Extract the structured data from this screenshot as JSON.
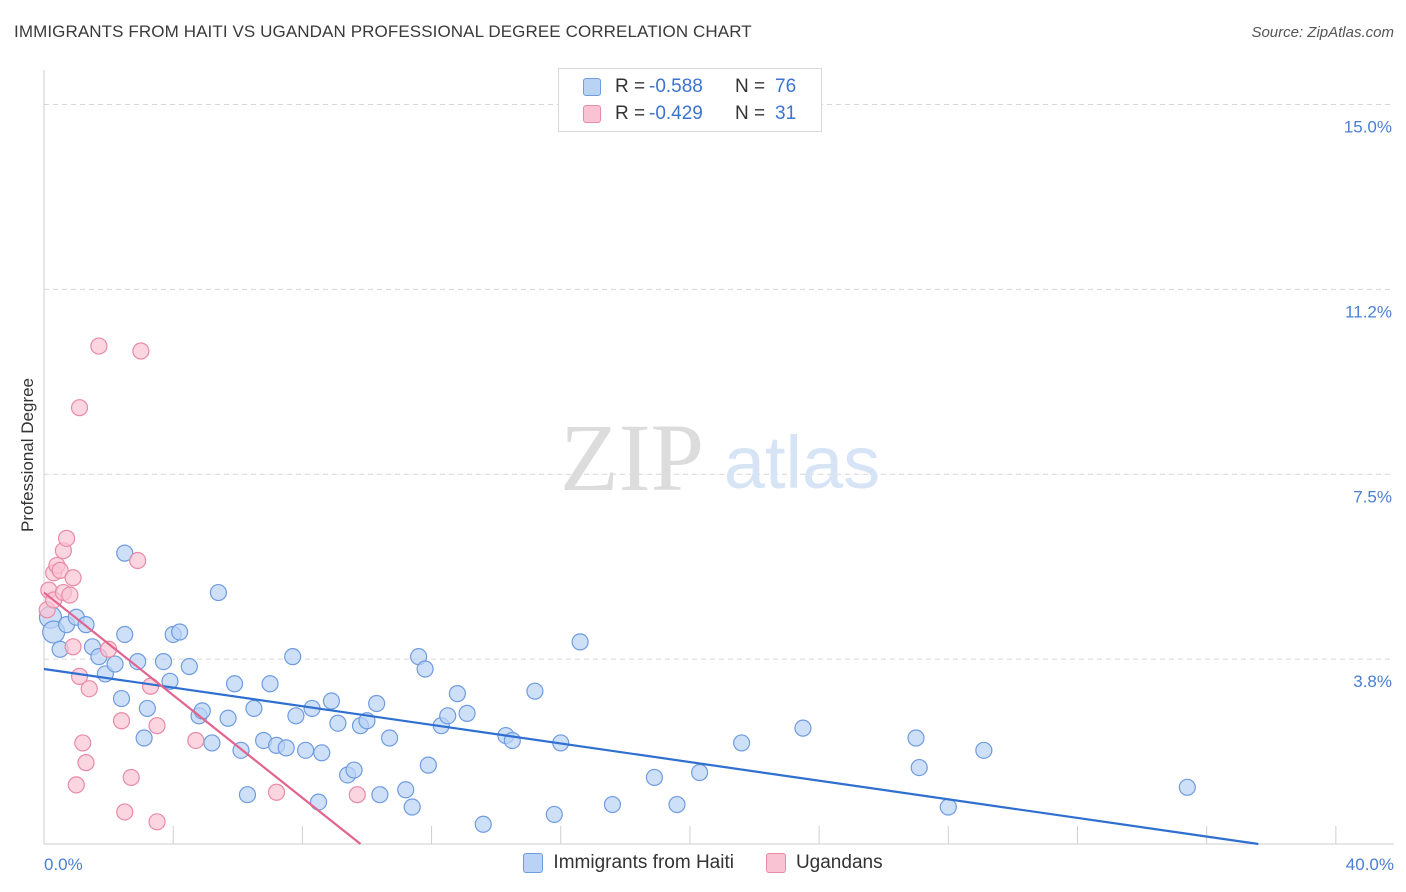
{
  "title": "IMMIGRANTS FROM HAITI VS UGANDAN PROFESSIONAL DEGREE CORRELATION CHART",
  "source": "Source: ZipAtlas.com",
  "legend": {
    "rows": [
      {
        "r_label": "R =",
        "r_value": "-0.588",
        "n_label": "N =",
        "n_value": "76"
      },
      {
        "r_label": "R =",
        "r_value": "-0.429",
        "n_label": "N =",
        "n_value": "31"
      }
    ]
  },
  "bottom_legend": {
    "haiti": "Immigrants from Haiti",
    "ugandans": "Ugandans"
  },
  "watermark": {
    "zip": "ZIP",
    "atlas": "atlas"
  },
  "colors": {
    "haiti_fill": "#b9d3f5",
    "haiti_stroke": "#6f9be0",
    "haiti_line": "#2f6fd0",
    "uganda_fill": "#f9c3d3",
    "uganda_stroke": "#e88aa8",
    "uganda_line": "#e2648e",
    "tick_text": "#4a7fd0",
    "grid": "#d6d6d6"
  },
  "chart_data": {
    "type": "scatter",
    "title": "IMMIGRANTS FROM HAITI VS UGANDAN PROFESSIONAL DEGREE CORRELATION CHART",
    "xlabel": "",
    "ylabel": "Professional Degree",
    "xlim": [
      0,
      40
    ],
    "ylim": [
      0,
      15.7
    ],
    "y_ticks": [
      {
        "value": 3.75,
        "label": "3.8%"
      },
      {
        "value": 7.5,
        "label": "7.5%"
      },
      {
        "value": 11.25,
        "label": "11.2%"
      },
      {
        "value": 15.0,
        "label": "15.0%"
      }
    ],
    "x_tick_labels": [
      {
        "value": 0,
        "label": "0.0%"
      },
      {
        "value": 40,
        "label": "40.0%"
      }
    ],
    "x_minor_ticks": [
      4,
      8,
      12,
      16,
      20,
      24,
      28,
      32,
      36,
      40
    ],
    "series": [
      {
        "name": "Immigrants from Haiti",
        "R": -0.588,
        "N": 76,
        "trend": {
          "x0": 0,
          "y0": 3.55,
          "x1": 37.6,
          "y1": 0.0
        },
        "points": [
          [
            0.2,
            4.6
          ],
          [
            0.3,
            4.3
          ],
          [
            0.5,
            3.95
          ],
          [
            0.7,
            4.45
          ],
          [
            1.0,
            4.6
          ],
          [
            1.3,
            4.45
          ],
          [
            1.5,
            4.0
          ],
          [
            1.7,
            3.8
          ],
          [
            1.9,
            3.45
          ],
          [
            2.2,
            3.65
          ],
          [
            2.5,
            4.25
          ],
          [
            2.4,
            2.95
          ],
          [
            2.5,
            5.9
          ],
          [
            2.9,
            3.7
          ],
          [
            3.2,
            2.75
          ],
          [
            3.1,
            2.15
          ],
          [
            3.7,
            3.7
          ],
          [
            3.9,
            3.3
          ],
          [
            4.0,
            4.25
          ],
          [
            4.2,
            4.3
          ],
          [
            4.5,
            3.6
          ],
          [
            4.8,
            2.6
          ],
          [
            4.9,
            2.7
          ],
          [
            5.2,
            2.05
          ],
          [
            5.4,
            5.1
          ],
          [
            5.7,
            2.55
          ],
          [
            5.9,
            3.25
          ],
          [
            6.1,
            1.9
          ],
          [
            6.3,
            1.0
          ],
          [
            6.5,
            2.75
          ],
          [
            6.8,
            2.1
          ],
          [
            7.0,
            3.25
          ],
          [
            7.2,
            2.0
          ],
          [
            7.5,
            1.95
          ],
          [
            7.7,
            3.8
          ],
          [
            7.8,
            2.6
          ],
          [
            8.1,
            1.9
          ],
          [
            8.3,
            2.75
          ],
          [
            8.5,
            0.85
          ],
          [
            8.6,
            1.85
          ],
          [
            8.9,
            2.9
          ],
          [
            9.1,
            2.45
          ],
          [
            9.4,
            1.4
          ],
          [
            9.6,
            1.5
          ],
          [
            9.8,
            2.4
          ],
          [
            10.0,
            2.5
          ],
          [
            10.3,
            2.85
          ],
          [
            10.4,
            1.0
          ],
          [
            10.7,
            2.15
          ],
          [
            11.2,
            1.1
          ],
          [
            11.4,
            0.75
          ],
          [
            11.6,
            3.8
          ],
          [
            11.8,
            3.55
          ],
          [
            11.9,
            1.6
          ],
          [
            12.3,
            2.4
          ],
          [
            12.5,
            2.6
          ],
          [
            12.8,
            3.05
          ],
          [
            13.1,
            2.65
          ],
          [
            13.6,
            0.4
          ],
          [
            14.3,
            2.2
          ],
          [
            14.5,
            2.1
          ],
          [
            15.2,
            3.1
          ],
          [
            15.8,
            0.6
          ],
          [
            16.0,
            2.05
          ],
          [
            16.6,
            4.1
          ],
          [
            17.6,
            0.8
          ],
          [
            18.9,
            1.35
          ],
          [
            19.6,
            0.8
          ],
          [
            20.3,
            1.45
          ],
          [
            21.6,
            2.05
          ],
          [
            23.5,
            2.35
          ],
          [
            27.0,
            2.15
          ],
          [
            27.1,
            1.55
          ],
          [
            28.0,
            0.75
          ],
          [
            29.1,
            1.9
          ],
          [
            35.4,
            1.15
          ]
        ]
      },
      {
        "name": "Ugandans",
        "R": -0.429,
        "N": 31,
        "trend": {
          "x0": 0,
          "y0": 5.1,
          "x1": 9.8,
          "y1": 0.0
        },
        "points": [
          [
            0.1,
            4.75
          ],
          [
            0.15,
            5.15
          ],
          [
            0.3,
            4.95
          ],
          [
            0.3,
            5.5
          ],
          [
            0.4,
            5.65
          ],
          [
            0.5,
            5.55
          ],
          [
            0.6,
            5.1
          ],
          [
            0.6,
            5.95
          ],
          [
            0.7,
            6.2
          ],
          [
            0.8,
            5.05
          ],
          [
            0.9,
            4.0
          ],
          [
            0.9,
            5.4
          ],
          [
            1.0,
            1.2
          ],
          [
            1.1,
            3.4
          ],
          [
            1.1,
            8.85
          ],
          [
            1.2,
            2.05
          ],
          [
            1.3,
            1.65
          ],
          [
            1.4,
            3.15
          ],
          [
            1.7,
            10.1
          ],
          [
            2.0,
            3.95
          ],
          [
            2.4,
            2.5
          ],
          [
            2.5,
            0.65
          ],
          [
            2.7,
            1.35
          ],
          [
            2.9,
            5.75
          ],
          [
            3.0,
            10.0
          ],
          [
            3.3,
            3.2
          ],
          [
            3.5,
            0.45
          ],
          [
            3.5,
            2.4
          ],
          [
            4.7,
            2.1
          ],
          [
            7.2,
            1.05
          ],
          [
            9.7,
            1.0
          ]
        ]
      }
    ]
  }
}
